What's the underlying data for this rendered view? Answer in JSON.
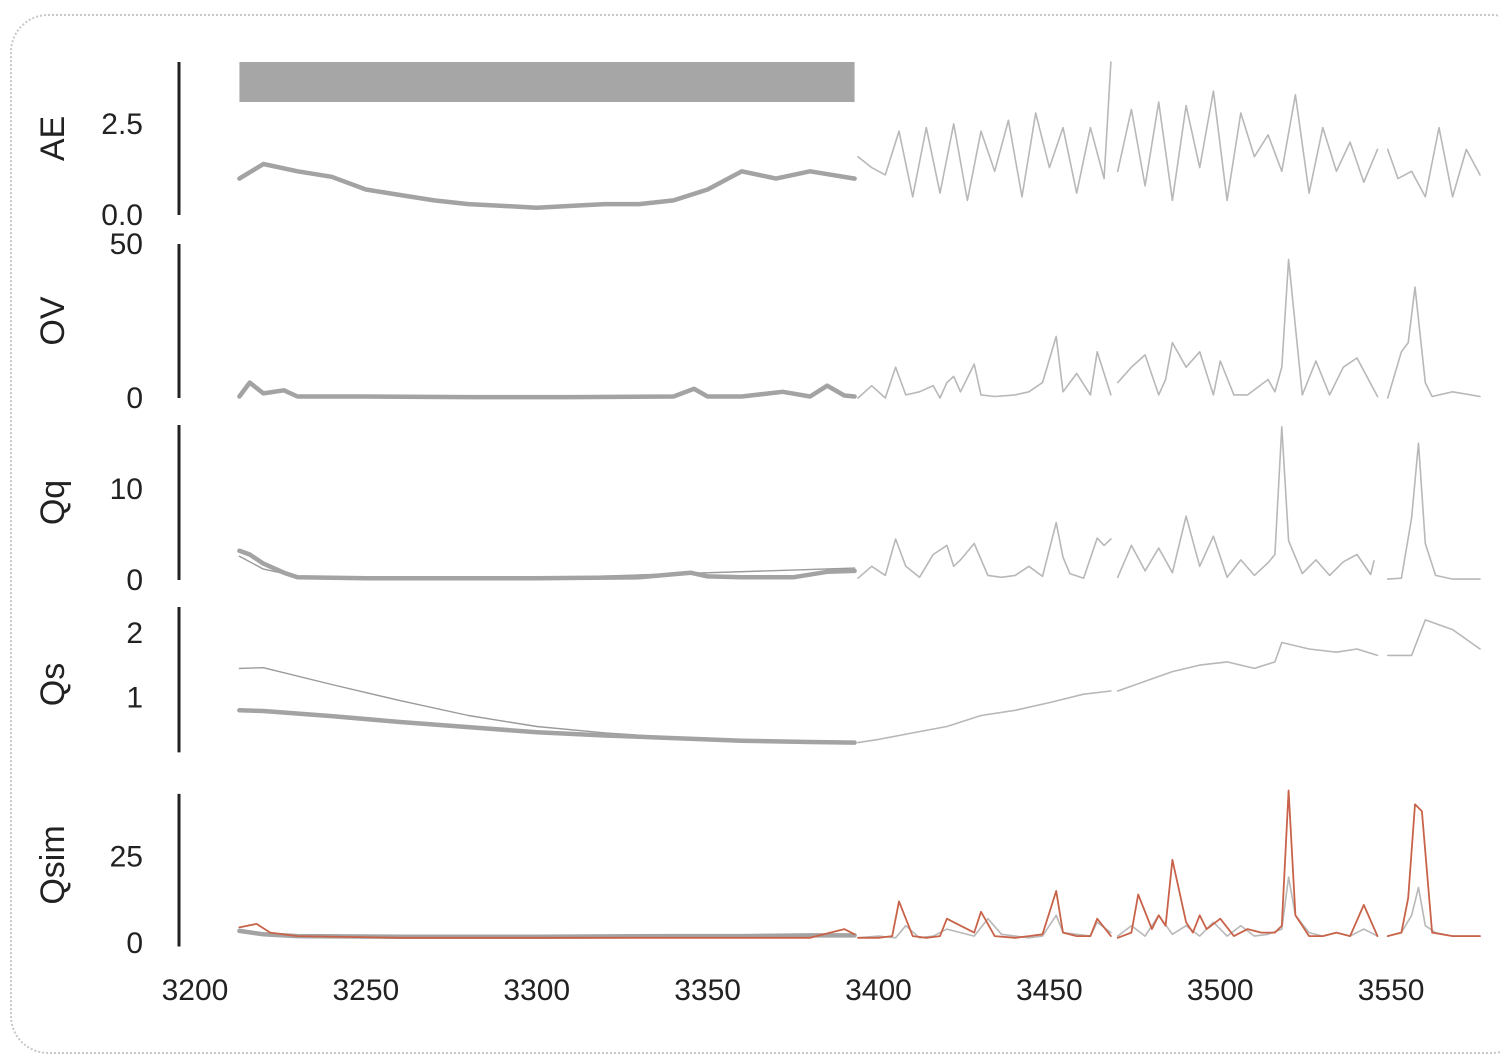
{
  "chart_data": {
    "type": "line",
    "x_axis": {
      "range": [
        3200,
        3580
      ],
      "ticks": [
        "3200",
        "3250",
        "3300",
        "3350",
        "3400",
        "3450",
        "3500",
        "3550"
      ]
    },
    "colors": {
      "observed": "#a3a3a3",
      "simulated": "#c8634a",
      "bar": "#a6a6a6",
      "axis": "#222222"
    },
    "panels": [
      {
        "ylabel": "AE",
        "ylim": [
          0,
          4.2
        ],
        "ticks": [
          {
            "v": 0.0,
            "label": "0.0"
          },
          {
            "v": 2.5,
            "label": "2.5"
          }
        ],
        "axis_range": [
          0,
          4.2
        ],
        "annotation_bar": {
          "x": [
            3213,
            3393
          ]
        },
        "thick": {
          "x": [
            3213,
            3220,
            3230,
            3240,
            3250,
            3260,
            3270,
            3280,
            3290,
            3300,
            3310,
            3320,
            3330,
            3340,
            3350,
            3360,
            3370,
            3380,
            3393
          ],
          "y": [
            1.0,
            1.4,
            1.2,
            1.05,
            0.7,
            0.55,
            0.4,
            0.3,
            0.25,
            0.2,
            0.25,
            0.3,
            0.3,
            0.4,
            0.7,
            1.2,
            1.0,
            1.2,
            1.0
          ]
        },
        "thin": [
          {
            "x": [
              3394,
              3398,
              3402,
              3406,
              3410,
              3414,
              3418,
              3422,
              3426,
              3430,
              3434,
              3438,
              3442,
              3446,
              3450,
              3454,
              3458,
              3462,
              3466,
              3468
            ],
            "y": [
              1.6,
              1.3,
              1.1,
              2.3,
              0.5,
              2.4,
              0.6,
              2.5,
              0.4,
              2.3,
              1.2,
              2.6,
              0.5,
              2.8,
              1.3,
              2.4,
              0.6,
              2.4,
              1.0,
              4.2
            ]
          },
          {
            "x": [
              3470,
              3474,
              3478,
              3482,
              3486,
              3490,
              3494,
              3498,
              3502,
              3506,
              3510,
              3514,
              3518,
              3522,
              3526,
              3530,
              3534,
              3538,
              3542,
              3546
            ],
            "y": [
              1.2,
              2.9,
              0.8,
              3.1,
              0.4,
              3.0,
              1.3,
              3.4,
              0.4,
              2.8,
              1.6,
              2.2,
              1.2,
              3.3,
              0.6,
              2.4,
              1.2,
              2.0,
              0.9,
              1.8
            ]
          },
          {
            "x": [
              3549,
              3552,
              3556,
              3560,
              3564,
              3568,
              3572,
              3576
            ],
            "y": [
              1.8,
              1.0,
              1.2,
              0.5,
              2.4,
              0.5,
              1.8,
              1.1
            ]
          }
        ]
      },
      {
        "ylabel": "OV",
        "ylim": [
          0,
          50
        ],
        "ticks": [
          {
            "v": 0,
            "label": "0"
          },
          {
            "v": 50,
            "label": "50"
          }
        ],
        "axis_range": [
          0,
          50
        ],
        "thick": {
          "x": [
            3213,
            3216,
            3220,
            3226,
            3230,
            3250,
            3280,
            3310,
            3340,
            3346,
            3350,
            3360,
            3372,
            3380,
            3385,
            3390,
            3393
          ],
          "y": [
            0.5,
            5,
            1.5,
            2.5,
            0.5,
            0.5,
            0.3,
            0.3,
            0.5,
            3.0,
            0.5,
            0.5,
            2.0,
            0.5,
            4.0,
            0.8,
            0.5
          ]
        },
        "thin": [
          {
            "x": [
              3394,
              3398,
              3402,
              3405,
              3408,
              3412,
              3416,
              3418,
              3420,
              3422,
              3424,
              3428,
              3430,
              3434,
              3440,
              3444,
              3448,
              3452,
              3454,
              3458,
              3462,
              3464,
              3468
            ],
            "y": [
              0,
              4,
              0,
              10,
              1,
              2,
              4,
              0,
              5,
              7,
              2,
              11,
              1,
              0.5,
              1,
              2,
              5,
              20,
              2,
              8,
              1,
              15,
              1
            ]
          },
          {
            "x": [
              3470,
              3474,
              3478,
              3482,
              3484,
              3486,
              3490,
              3494,
              3498,
              3500,
              3504,
              3508,
              3514,
              3516,
              3518,
              3520,
              3524,
              3528,
              3532,
              3536,
              3540,
              3546
            ],
            "y": [
              5,
              10,
              14,
              1,
              6,
              18,
              10,
              15,
              1,
              12,
              1,
              1,
              6,
              2,
              10,
              45,
              1,
              12,
              1,
              10,
              13,
              0.5
            ]
          },
          {
            "x": [
              3549,
              3553,
              3555,
              3557,
              3560,
              3562,
              3568,
              3576
            ],
            "y": [
              0,
              15,
              18,
              36,
              5,
              0.5,
              2,
              0.5
            ]
          }
        ]
      },
      {
        "ylabel": "Qq",
        "ylim": [
          0,
          17
        ],
        "ticks": [
          {
            "v": 0,
            "label": "0"
          },
          {
            "v": 10,
            "label": "10"
          }
        ],
        "axis_range": [
          0,
          17
        ],
        "thick": {
          "x": [
            3213,
            3216,
            3220,
            3226,
            3230,
            3250,
            3300,
            3330,
            3345,
            3350,
            3360,
            3375,
            3385,
            3393
          ],
          "y": [
            3.2,
            2.8,
            1.8,
            0.8,
            0.3,
            0.2,
            0.2,
            0.3,
            0.8,
            0.4,
            0.3,
            0.3,
            0.9,
            1.0
          ]
        },
        "thin_dark": {
          "x": [
            3213,
            3220,
            3230,
            3260,
            3300,
            3393
          ],
          "y": [
            2.6,
            1.2,
            0.4,
            0.2,
            0.2,
            1.3
          ]
        },
        "thin": [
          {
            "x": [
              3394,
              3398,
              3402,
              3405,
              3408,
              3412,
              3416,
              3420,
              3422,
              3424,
              3428,
              3432,
              3436,
              3440,
              3444,
              3448,
              3452,
              3454,
              3456,
              3460,
              3464,
              3466,
              3468
            ],
            "y": [
              0.2,
              1.5,
              0.5,
              4.5,
              1.5,
              0.3,
              2.8,
              3.8,
              1.5,
              2.2,
              4.0,
              0.5,
              0.3,
              0.5,
              1.5,
              0.4,
              6.3,
              2.5,
              0.7,
              0.2,
              4.6,
              3.8,
              4.5
            ]
          },
          {
            "x": [
              3470,
              3474,
              3478,
              3482,
              3486,
              3490,
              3494,
              3498,
              3502,
              3506,
              3510,
              3514,
              3516,
              3518,
              3520,
              3524,
              3528,
              3532,
              3536,
              3540,
              3544,
              3545
            ],
            "y": [
              0.3,
              3.8,
              1.0,
              3.5,
              0.8,
              7.0,
              1.5,
              4.8,
              0.3,
              2.2,
              0.5,
              1.9,
              2.8,
              16.8,
              4.3,
              0.7,
              2.2,
              0.5,
              2.0,
              2.8,
              0.6,
              2.1
            ]
          },
          {
            "x": [
              3549,
              3553,
              3556,
              3558,
              3560,
              3563,
              3568,
              3576
            ],
            "y": [
              0.1,
              0.2,
              6.8,
              15.0,
              4.0,
              0.5,
              0.1,
              0.1
            ]
          }
        ]
      },
      {
        "ylabel": "Qs",
        "ylim": [
          0,
          2.4
        ],
        "ticks": [
          {
            "v": 1,
            "label": "1"
          },
          {
            "v": 2,
            "label": "2"
          }
        ],
        "axis_range": [
          0.15,
          2.4
        ],
        "thick": {
          "x": [
            3213,
            3220,
            3240,
            3260,
            3280,
            3300,
            3320,
            3340,
            3360,
            3380,
            3393
          ],
          "y": [
            0.8,
            0.79,
            0.71,
            0.62,
            0.54,
            0.46,
            0.41,
            0.37,
            0.33,
            0.31,
            0.3
          ]
        },
        "thin_dark": {
          "x": [
            3213,
            3220,
            3240,
            3260,
            3280,
            3300,
            3320,
            3340,
            3360,
            3380,
            3393
          ],
          "y": [
            1.45,
            1.46,
            1.2,
            0.95,
            0.72,
            0.55,
            0.45,
            0.38,
            0.33,
            0.31,
            0.3
          ]
        },
        "thin": [
          {
            "x": [
              3394,
              3400,
              3410,
              3420,
              3430,
              3440,
              3450,
              3460,
              3468
            ],
            "y": [
              0.3,
              0.35,
              0.45,
              0.55,
              0.72,
              0.8,
              0.92,
              1.05,
              1.1
            ]
          },
          {
            "x": [
              3470,
              3478,
              3486,
              3494,
              3502,
              3510,
              3516,
              3518,
              3526,
              3534,
              3540,
              3546
            ],
            "y": [
              1.1,
              1.25,
              1.4,
              1.5,
              1.55,
              1.45,
              1.55,
              1.85,
              1.75,
              1.7,
              1.75,
              1.65
            ]
          },
          {
            "x": [
              3549,
              3556,
              3560,
              3568,
              3576
            ],
            "y": [
              1.65,
              1.65,
              2.2,
              2.05,
              1.75
            ]
          }
        ]
      },
      {
        "ylabel": "Qsim",
        "ylim": [
          0,
          45
        ],
        "ticks": [
          {
            "v": 0,
            "label": "0"
          },
          {
            "v": 25,
            "label": "25"
          }
        ],
        "axis_range": [
          -1,
          43
        ],
        "thick": {
          "x": [
            3213,
            3220,
            3230,
            3260,
            3300,
            3340,
            3360,
            3380,
            3393
          ],
          "y": [
            3.5,
            2.5,
            2.0,
            1.8,
            1.8,
            2.0,
            2.0,
            2.2,
            2.2
          ]
        },
        "thin": [
          {
            "x": [
              3394,
              3400,
              3405,
              3408,
              3412,
              3416,
              3420,
              3424,
              3428,
              3432,
              3436,
              3440,
              3444,
              3448,
              3452,
              3454,
              3458,
              3462,
              3464,
              3468
            ],
            "y": [
              1.5,
              2,
              1.5,
              5,
              1.5,
              2,
              4,
              3,
              2,
              7,
              2.5,
              2,
              1.5,
              2,
              8,
              3,
              2.5,
              2,
              6,
              3
            ]
          },
          {
            "x": [
              3470,
              3474,
              3478,
              3482,
              3486,
              3490,
              3494,
              3498,
              3502,
              3506,
              3510,
              3514,
              3518,
              3520,
              3522,
              3526,
              3530,
              3534,
              3538,
              3542,
              3546
            ],
            "y": [
              2,
              5,
              2,
              8,
              2.5,
              5,
              2,
              6,
              2,
              5,
              2,
              2.5,
              4,
              19,
              8,
              3,
              2,
              3,
              2,
              4,
              2
            ]
          },
          {
            "x": [
              3549,
              3553,
              3556,
              3558,
              3560,
              3563,
              3568,
              3576
            ],
            "y": [
              2,
              3,
              8,
              16,
              5,
              3,
              2,
              2
            ]
          }
        ],
        "sim": [
          {
            "x": [
              3213,
              3218,
              3222,
              3230,
              3260,
              3300,
              3340,
              3380,
              3390,
              3393
            ],
            "y": [
              4.5,
              5.5,
              3.0,
              2.0,
              1.5,
              1.5,
              1.5,
              1.5,
              4.0,
              2.5
            ]
          },
          {
            "x": [
              3394,
              3400,
              3404,
              3406,
              3410,
              3414,
              3418,
              3420,
              3424,
              3428,
              3430,
              3434,
              3440,
              3444,
              3448,
              3452,
              3454,
              3458,
              3462,
              3464,
              3468
            ],
            "y": [
              1.5,
              1.5,
              2,
              12,
              2,
              1.5,
              2,
              7,
              5,
              3,
              9,
              2,
              1.5,
              2,
              2.5,
              15,
              3,
              2,
              2,
              7,
              2
            ]
          },
          {
            "x": [
              3470,
              3474,
              3476,
              3480,
              3482,
              3484,
              3486,
              3490,
              3492,
              3494,
              3496,
              3500,
              3504,
              3508,
              3512,
              3516,
              3518,
              3520,
              3522,
              3526,
              3530,
              3534,
              3538,
              3542,
              3546
            ],
            "y": [
              1.5,
              3,
              14,
              4,
              8,
              5,
              24,
              6,
              3,
              8,
              4,
              7,
              2,
              4,
              3,
              3,
              5,
              44,
              8,
              2,
              2,
              3,
              2,
              11,
              2
            ]
          },
          {
            "x": [
              3549,
              3553,
              3555,
              3557,
              3559,
              3562,
              3568,
              3576
            ],
            "y": [
              2,
              3,
              13,
              40,
              38,
              3,
              2,
              2
            ]
          }
        ]
      }
    ]
  }
}
